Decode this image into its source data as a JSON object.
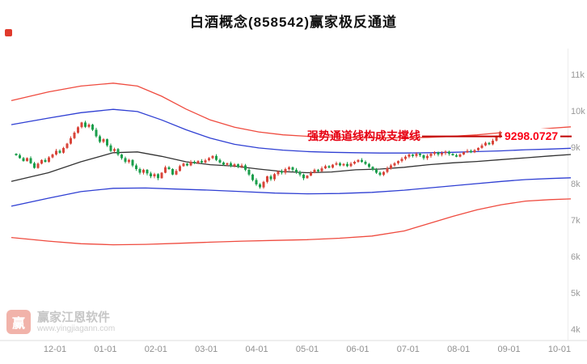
{
  "title": "白酒概念(858542)赢家极反通道",
  "watermark": {
    "logo_char": "赢",
    "brand": "赢家江恩软件",
    "url": "www.yingjiagann.com"
  },
  "colors": {
    "up": "#d9453a",
    "down": "#1a9e4b",
    "support": "#c00000",
    "annotation": "#e60012",
    "axis_text": "#999999",
    "channel": {
      "upper_red": "#ef4b3f",
      "upper_blue": "#2f3fd3",
      "middle_black": "#333333",
      "lower_blue": "#2f3fd3",
      "lower_red": "#ef4b3f"
    }
  },
  "chart_data": {
    "type": "candlestick",
    "title": "白酒概念(858542)赢家极反通道",
    "legend_position": "none",
    "grid": false,
    "y_axis": {
      "ticks": [
        "11k",
        "10k",
        "9k",
        "8k",
        "7k",
        "6k",
        "5k",
        "4k"
      ],
      "tick_values": [
        11000,
        10000,
        9000,
        8000,
        7000,
        6000,
        5000,
        4000
      ],
      "range": [
        4000,
        11000
      ]
    },
    "x_axis": {
      "ticks": [
        "12-01",
        "01-01",
        "02-01",
        "03-01",
        "04-01",
        "05-01",
        "06-01",
        "07-01",
        "08-01",
        "09-01",
        "10-01"
      ]
    },
    "annotation_text": "强势通道线构成支撑线",
    "support_line": {
      "value": 9298.0727,
      "label": "9298.0727",
      "text": "强势通道线构成支撑线"
    },
    "first_open": 8820,
    "closes": [
      8780,
      8700,
      8620,
      8700,
      8560,
      8430,
      8550,
      8650,
      8600,
      8720,
      8800,
      8900,
      8850,
      8980,
      9100,
      9250,
      9400,
      9550,
      9680,
      9560,
      9620,
      9480,
      9300,
      9150,
      9220,
      9050,
      8900,
      8950,
      8800,
      8700,
      8600,
      8650,
      8500,
      8400,
      8300,
      8380,
      8280,
      8200,
      8260,
      8150,
      8300,
      8450,
      8400,
      8250,
      8350,
      8480,
      8550,
      8500,
      8600,
      8560,
      8620,
      8580,
      8640,
      8700,
      8760,
      8650,
      8580,
      8520,
      8560,
      8480,
      8530,
      8460,
      8500,
      8380,
      8250,
      8100,
      7980,
      7900,
      8050,
      8200,
      8120,
      8260,
      8340,
      8300,
      8400,
      8450,
      8380,
      8320,
      8250,
      8150,
      8220,
      8300,
      8380,
      8340,
      8420,
      8480,
      8440,
      8520,
      8560,
      8500,
      8540,
      8480,
      8550,
      8600,
      8650,
      8600,
      8540,
      8460,
      8380,
      8300,
      8240,
      8320,
      8420,
      8500,
      8560,
      8620,
      8680,
      8740,
      8800,
      8760,
      8820,
      8780,
      8700,
      8760,
      8820,
      8860,
      8800,
      8840,
      8880,
      8820,
      8780,
      8740,
      8800,
      8860,
      8900,
      8860,
      8920,
      8980,
      9050,
      9120,
      9080,
      9180,
      9280,
      9420,
      9300,
      9380,
      9450,
      9320,
      9380,
      9298
    ],
    "lines": {
      "upper_red": [
        [
          14,
          10280
        ],
        [
          60,
          10520
        ],
        [
          100,
          10680
        ],
        [
          140,
          10760
        ],
        [
          170,
          10680
        ],
        [
          200,
          10400
        ],
        [
          230,
          10050
        ],
        [
          260,
          9750
        ],
        [
          290,
          9550
        ],
        [
          320,
          9420
        ],
        [
          350,
          9340
        ],
        [
          380,
          9300
        ],
        [
          410,
          9280
        ],
        [
          440,
          9270
        ],
        [
          470,
          9260
        ],
        [
          500,
          9260
        ],
        [
          530,
          9270
        ],
        [
          560,
          9300
        ],
        [
          590,
          9340
        ],
        [
          620,
          9400
        ],
        [
          650,
          9460
        ],
        [
          680,
          9520
        ],
        [
          706,
          9560
        ]
      ],
      "upper_blue": [
        [
          14,
          9620
        ],
        [
          60,
          9800
        ],
        [
          100,
          9950
        ],
        [
          140,
          10040
        ],
        [
          170,
          9980
        ],
        [
          200,
          9750
        ],
        [
          230,
          9480
        ],
        [
          260,
          9250
        ],
        [
          290,
          9080
        ],
        [
          320,
          8980
        ],
        [
          350,
          8920
        ],
        [
          380,
          8880
        ],
        [
          410,
          8860
        ],
        [
          440,
          8850
        ],
        [
          470,
          8840
        ],
        [
          500,
          8840
        ],
        [
          530,
          8850
        ],
        [
          560,
          8860
        ],
        [
          590,
          8880
        ],
        [
          620,
          8900
        ],
        [
          650,
          8930
        ],
        [
          680,
          8950
        ],
        [
          706,
          8970
        ]
      ],
      "middle_black": [
        [
          14,
          8060
        ],
        [
          60,
          8300
        ],
        [
          100,
          8600
        ],
        [
          140,
          8850
        ],
        [
          170,
          8870
        ],
        [
          200,
          8750
        ],
        [
          230,
          8600
        ],
        [
          260,
          8520
        ],
        [
          290,
          8480
        ],
        [
          320,
          8400
        ],
        [
          350,
          8330
        ],
        [
          380,
          8300
        ],
        [
          410,
          8320
        ],
        [
          440,
          8380
        ],
        [
          470,
          8400
        ],
        [
          500,
          8450
        ],
        [
          530,
          8520
        ],
        [
          560,
          8570
        ],
        [
          590,
          8610
        ],
        [
          620,
          8660
        ],
        [
          650,
          8710
        ],
        [
          680,
          8760
        ],
        [
          706,
          8800
        ]
      ],
      "lower_blue": [
        [
          14,
          7380
        ],
        [
          60,
          7600
        ],
        [
          100,
          7780
        ],
        [
          140,
          7870
        ],
        [
          180,
          7880
        ],
        [
          220,
          7850
        ],
        [
          260,
          7820
        ],
        [
          300,
          7780
        ],
        [
          340,
          7740
        ],
        [
          380,
          7720
        ],
        [
          420,
          7730
        ],
        [
          460,
          7760
        ],
        [
          500,
          7820
        ],
        [
          540,
          7900
        ],
        [
          580,
          7980
        ],
        [
          620,
          8060
        ],
        [
          650,
          8110
        ],
        [
          680,
          8140
        ],
        [
          706,
          8160
        ]
      ],
      "lower_red": [
        [
          14,
          6520
        ],
        [
          60,
          6420
        ],
        [
          100,
          6350
        ],
        [
          140,
          6320
        ],
        [
          180,
          6330
        ],
        [
          220,
          6360
        ],
        [
          260,
          6390
        ],
        [
          300,
          6420
        ],
        [
          340,
          6440
        ],
        [
          380,
          6460
        ],
        [
          420,
          6500
        ],
        [
          460,
          6560
        ],
        [
          500,
          6700
        ],
        [
          530,
          6900
        ],
        [
          560,
          7100
        ],
        [
          590,
          7280
        ],
        [
          620,
          7420
        ],
        [
          650,
          7520
        ],
        [
          680,
          7560
        ],
        [
          706,
          7580
        ]
      ]
    }
  }
}
